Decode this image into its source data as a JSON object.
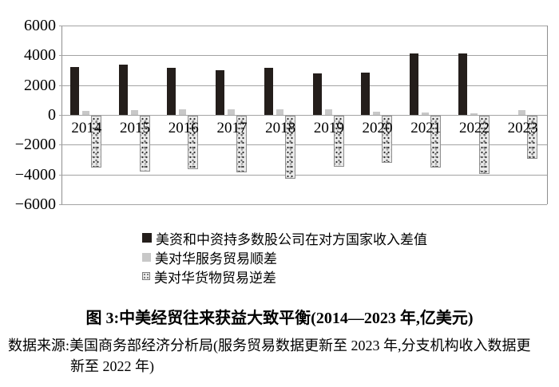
{
  "figure": {
    "caption": "图 3:中美经贸往来获益大致平衡(2014—2023 年,亿美元)",
    "source_line1": "数据来源:美国商务部经济分析局(服务贸易数据更新至 2023 年,分支机构收入数据更",
    "source_line2": "新至 2022 年)"
  },
  "chart_data": {
    "type": "bar",
    "title": "图 3:中美经贸往来获益大致平衡(2014—2023 年,亿美元)",
    "unit": "亿美元",
    "categories": [
      "2014",
      "2015",
      "2016",
      "2017",
      "2018",
      "2019",
      "2020",
      "2021",
      "2022",
      "2023"
    ],
    "series": [
      {
        "name": "美资和中资持多数股公司在对方国家收入差值",
        "style": "solid-dark",
        "color": "#241e1b",
        "values": [
          3200,
          3400,
          3150,
          3000,
          3150,
          2800,
          2850,
          4100,
          4150,
          null
        ]
      },
      {
        "name": "美对华服务贸易顺差",
        "style": "solid-light",
        "color": "#c8c8c8",
        "values": [
          280,
          320,
          350,
          380,
          390,
          380,
          230,
          150,
          130,
          300
        ]
      },
      {
        "name": "美对华货物贸易逆差",
        "style": "speckled",
        "color": "#ebebeb",
        "values": [
          -3450,
          -3700,
          -3550,
          -3750,
          -4200,
          -3400,
          -3100,
          -3450,
          -3850,
          -2850
        ]
      }
    ],
    "ylim": [
      -6000,
      6000
    ],
    "ytick_interval": 2000,
    "ytick_labels": [
      "6000",
      "4000",
      "2000",
      "0",
      "−2000",
      "−4000",
      "−6000"
    ],
    "grid": true,
    "legend_position": "bottom-left",
    "axis_color": "#8f8f8f",
    "grid_color": "#a3a3a3"
  }
}
